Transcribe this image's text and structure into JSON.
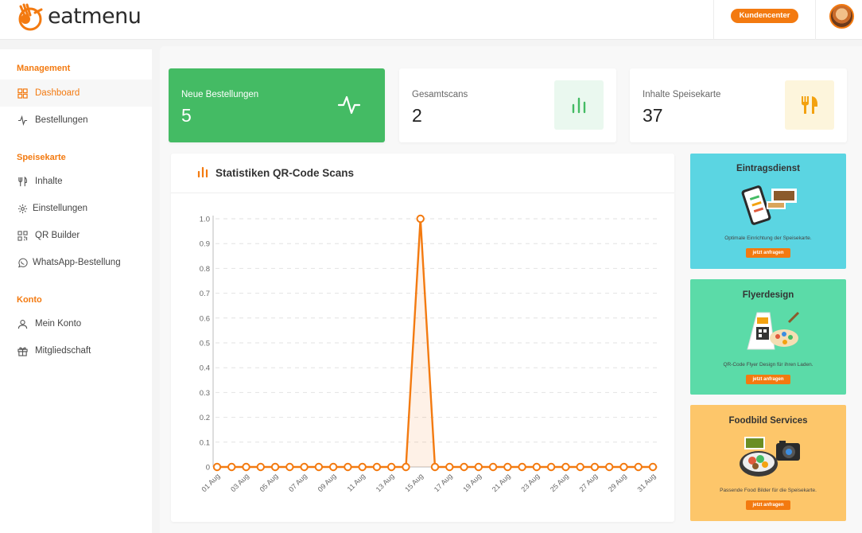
{
  "brand": {
    "name_part1": "eat",
    "name_part2": "menu",
    "accent": "#f37a10",
    "green": "#44bb64"
  },
  "header": {
    "customer_center_label": "Kundencenter"
  },
  "sidebar": {
    "sections": [
      {
        "title": "Management",
        "items": [
          {
            "label": "Dashboard",
            "icon": "grid-icon",
            "active": true
          },
          {
            "label": "Bestellungen",
            "icon": "activity-icon"
          }
        ]
      },
      {
        "title": "Speisekarte",
        "items": [
          {
            "label": "Inhalte",
            "icon": "cutlery-icon"
          },
          {
            "label": "Einstellungen",
            "icon": "gear-icon"
          },
          {
            "label": "QR Builder",
            "icon": "qr-icon"
          },
          {
            "label": "WhatsApp-Bestellung",
            "icon": "whatsapp-icon"
          }
        ]
      },
      {
        "title": "Konto",
        "items": [
          {
            "label": "Mein Konto",
            "icon": "user-icon"
          },
          {
            "label": "Mitgliedschaft",
            "icon": "gift-icon"
          }
        ]
      }
    ]
  },
  "stats": [
    {
      "label": "Neue Bestellungen",
      "value": "5",
      "icon": "activity-icon"
    },
    {
      "label": "Gesamtscans",
      "value": "2",
      "icon": "bar-chart-icon"
    },
    {
      "label": "Inhalte Speisekarte",
      "value": "37",
      "icon": "cutlery-icon"
    }
  ],
  "chart_panel": {
    "title": "Statistiken QR-Code Scans"
  },
  "chart_data": {
    "type": "line",
    "x": [
      "01 Aug",
      "02 Aug",
      "03 Aug",
      "04 Aug",
      "05 Aug",
      "06 Aug",
      "07 Aug",
      "08 Aug",
      "09 Aug",
      "10 Aug",
      "11 Aug",
      "12 Aug",
      "13 Aug",
      "14 Aug",
      "15 Aug",
      "16 Aug",
      "17 Aug",
      "18 Aug",
      "19 Aug",
      "20 Aug",
      "21 Aug",
      "22 Aug",
      "23 Aug",
      "24 Aug",
      "25 Aug",
      "26 Aug",
      "27 Aug",
      "28 Aug",
      "29 Aug",
      "30 Aug",
      "31 Aug"
    ],
    "xticklabels": [
      "01 Aug",
      "03 Aug",
      "05 Aug",
      "07 Aug",
      "09 Aug",
      "11 Aug",
      "13 Aug",
      "15 Aug",
      "17 Aug",
      "19 Aug",
      "21 Aug",
      "23 Aug",
      "25 Aug",
      "27 Aug",
      "29 Aug",
      "31 Aug"
    ],
    "series": [
      {
        "values": [
          0,
          0,
          0,
          0,
          0,
          0,
          0,
          0,
          0,
          0,
          0,
          0,
          0,
          0,
          1,
          0,
          0,
          0,
          0,
          0,
          0,
          0,
          0,
          0,
          0,
          0,
          0,
          0,
          0,
          0,
          0
        ],
        "color": "#f37a10"
      }
    ],
    "yticks": [
      "0",
      "0.1",
      "0.2",
      "0.3",
      "0.4",
      "0.5",
      "0.6",
      "0.7",
      "0.8",
      "0.9",
      "1.0"
    ],
    "ylim": [
      0,
      1
    ],
    "grid": true
  },
  "promos": [
    {
      "title": "Eintragsdienst",
      "text": "Optimale Einrichtung der Speisekarte.",
      "button": "jetzt anfragen",
      "bg": "#5bd5e2"
    },
    {
      "title": "Flyerdesign",
      "text": "QR-Code Flyer Design für ihren Laden.",
      "button": "jetzt anfragen",
      "bg": "#5bdba8"
    },
    {
      "title": "Foodbild Services",
      "text": "Passende Food Bilder für die Speisekarte.",
      "button": "jetzt anfragen",
      "bg": "#fdc66a"
    }
  ]
}
